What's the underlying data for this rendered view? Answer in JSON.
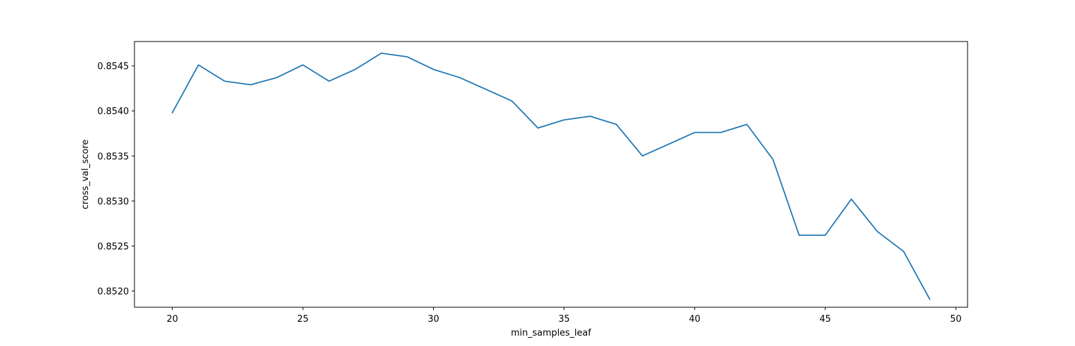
{
  "chart_data": {
    "type": "line",
    "title": "",
    "xlabel": "min_samples_leaf",
    "ylabel": "cross_val_score",
    "xlim": [
      18.55,
      50.45
    ],
    "ylim": [
      0.85182,
      0.85477
    ],
    "grid": false,
    "x_ticks": [
      20,
      25,
      30,
      35,
      40,
      45,
      50
    ],
    "x_tick_labels": [
      "20",
      "25",
      "30",
      "35",
      "40",
      "45",
      "50"
    ],
    "y_ticks": [
      0.852,
      0.8525,
      0.853,
      0.8535,
      0.854,
      0.8545
    ],
    "y_tick_labels": [
      "0.8520",
      "0.8525",
      "0.8530",
      "0.8535",
      "0.8540",
      "0.8545"
    ],
    "series": [
      {
        "color": "#1f77b4",
        "x": [
          20,
          21,
          22,
          23,
          24,
          25,
          26,
          27,
          28,
          29,
          30,
          31,
          32,
          33,
          34,
          35,
          36,
          37,
          38,
          39,
          40,
          41,
          42,
          43,
          44,
          45,
          46,
          47,
          48,
          49
        ],
        "y": [
          0.85398,
          0.85451,
          0.85433,
          0.85429,
          0.85437,
          0.85451,
          0.85433,
          0.85446,
          0.85464,
          0.8546,
          0.85446,
          0.85437,
          0.85424,
          0.85411,
          0.85381,
          0.8539,
          0.85394,
          0.85385,
          0.8535,
          0.85363,
          0.85376,
          0.85376,
          0.85385,
          0.85346,
          0.85262,
          0.85262,
          0.85302,
          0.85266,
          0.85244,
          0.85191
        ]
      }
    ]
  }
}
